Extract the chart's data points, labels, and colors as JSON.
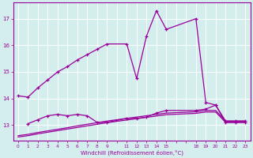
{
  "xlabel": "Windchill (Refroidissement éolien,°C)",
  "bg_color": "#d4eeee",
  "line_color": "#990099",
  "grid_color": "#b0d8d8",
  "xlim": [
    -0.5,
    23.5
  ],
  "ylim": [
    12.4,
    17.6
  ],
  "yticks": [
    13,
    14,
    15,
    16,
    17
  ],
  "xtick_labels": [
    "0",
    "1",
    "2",
    "3",
    "4",
    "5",
    "6",
    "7",
    "8",
    "9",
    "",
    "11",
    "12",
    "13",
    "14",
    "15",
    "",
    "",
    "18",
    "19",
    "20",
    "21",
    "22",
    "23"
  ],
  "xtick_positions": [
    0,
    1,
    2,
    3,
    4,
    5,
    6,
    7,
    8,
    9,
    10,
    11,
    12,
    13,
    14,
    15,
    16,
    17,
    18,
    19,
    20,
    21,
    22,
    23
  ],
  "line1_x": [
    0,
    1,
    2,
    3,
    4,
    5,
    6,
    7,
    8,
    9,
    11,
    12,
    13,
    14,
    15,
    18,
    19,
    20,
    21,
    22,
    23
  ],
  "line1_y": [
    14.1,
    14.05,
    14.4,
    14.7,
    15.0,
    15.2,
    15.45,
    15.65,
    15.85,
    16.05,
    16.05,
    14.75,
    16.35,
    17.3,
    16.6,
    17.0,
    13.85,
    13.75,
    13.1,
    13.1,
    13.1
  ],
  "line2_x": [
    1,
    2,
    3,
    4,
    5,
    6,
    7,
    8,
    9,
    11,
    12,
    13,
    14,
    15,
    18,
    19,
    20,
    21,
    22,
    23
  ],
  "line2_y": [
    13.05,
    13.2,
    13.35,
    13.4,
    13.35,
    13.4,
    13.35,
    13.1,
    13.1,
    13.25,
    13.25,
    13.3,
    13.45,
    13.55,
    13.55,
    13.6,
    13.75,
    13.15,
    13.15,
    13.15
  ],
  "line3_x": [
    0,
    1,
    2,
    3,
    4,
    5,
    6,
    7,
    8,
    9,
    11,
    12,
    13,
    14,
    15,
    18,
    19,
    20,
    21,
    22,
    23
  ],
  "line3_y": [
    12.6,
    12.65,
    12.72,
    12.78,
    12.84,
    12.9,
    12.97,
    13.03,
    13.09,
    13.15,
    13.25,
    13.3,
    13.35,
    13.4,
    13.45,
    13.5,
    13.55,
    13.55,
    13.15,
    13.15,
    13.15
  ],
  "line4_x": [
    0,
    1,
    2,
    3,
    4,
    5,
    6,
    7,
    8,
    9,
    11,
    12,
    13,
    14,
    15,
    18,
    19,
    20,
    21,
    22,
    23
  ],
  "line4_y": [
    12.55,
    12.6,
    12.67,
    12.73,
    12.79,
    12.85,
    12.91,
    12.97,
    13.03,
    13.09,
    13.19,
    13.24,
    13.29,
    13.34,
    13.39,
    13.44,
    13.49,
    13.49,
    13.1,
    13.1,
    13.1
  ]
}
